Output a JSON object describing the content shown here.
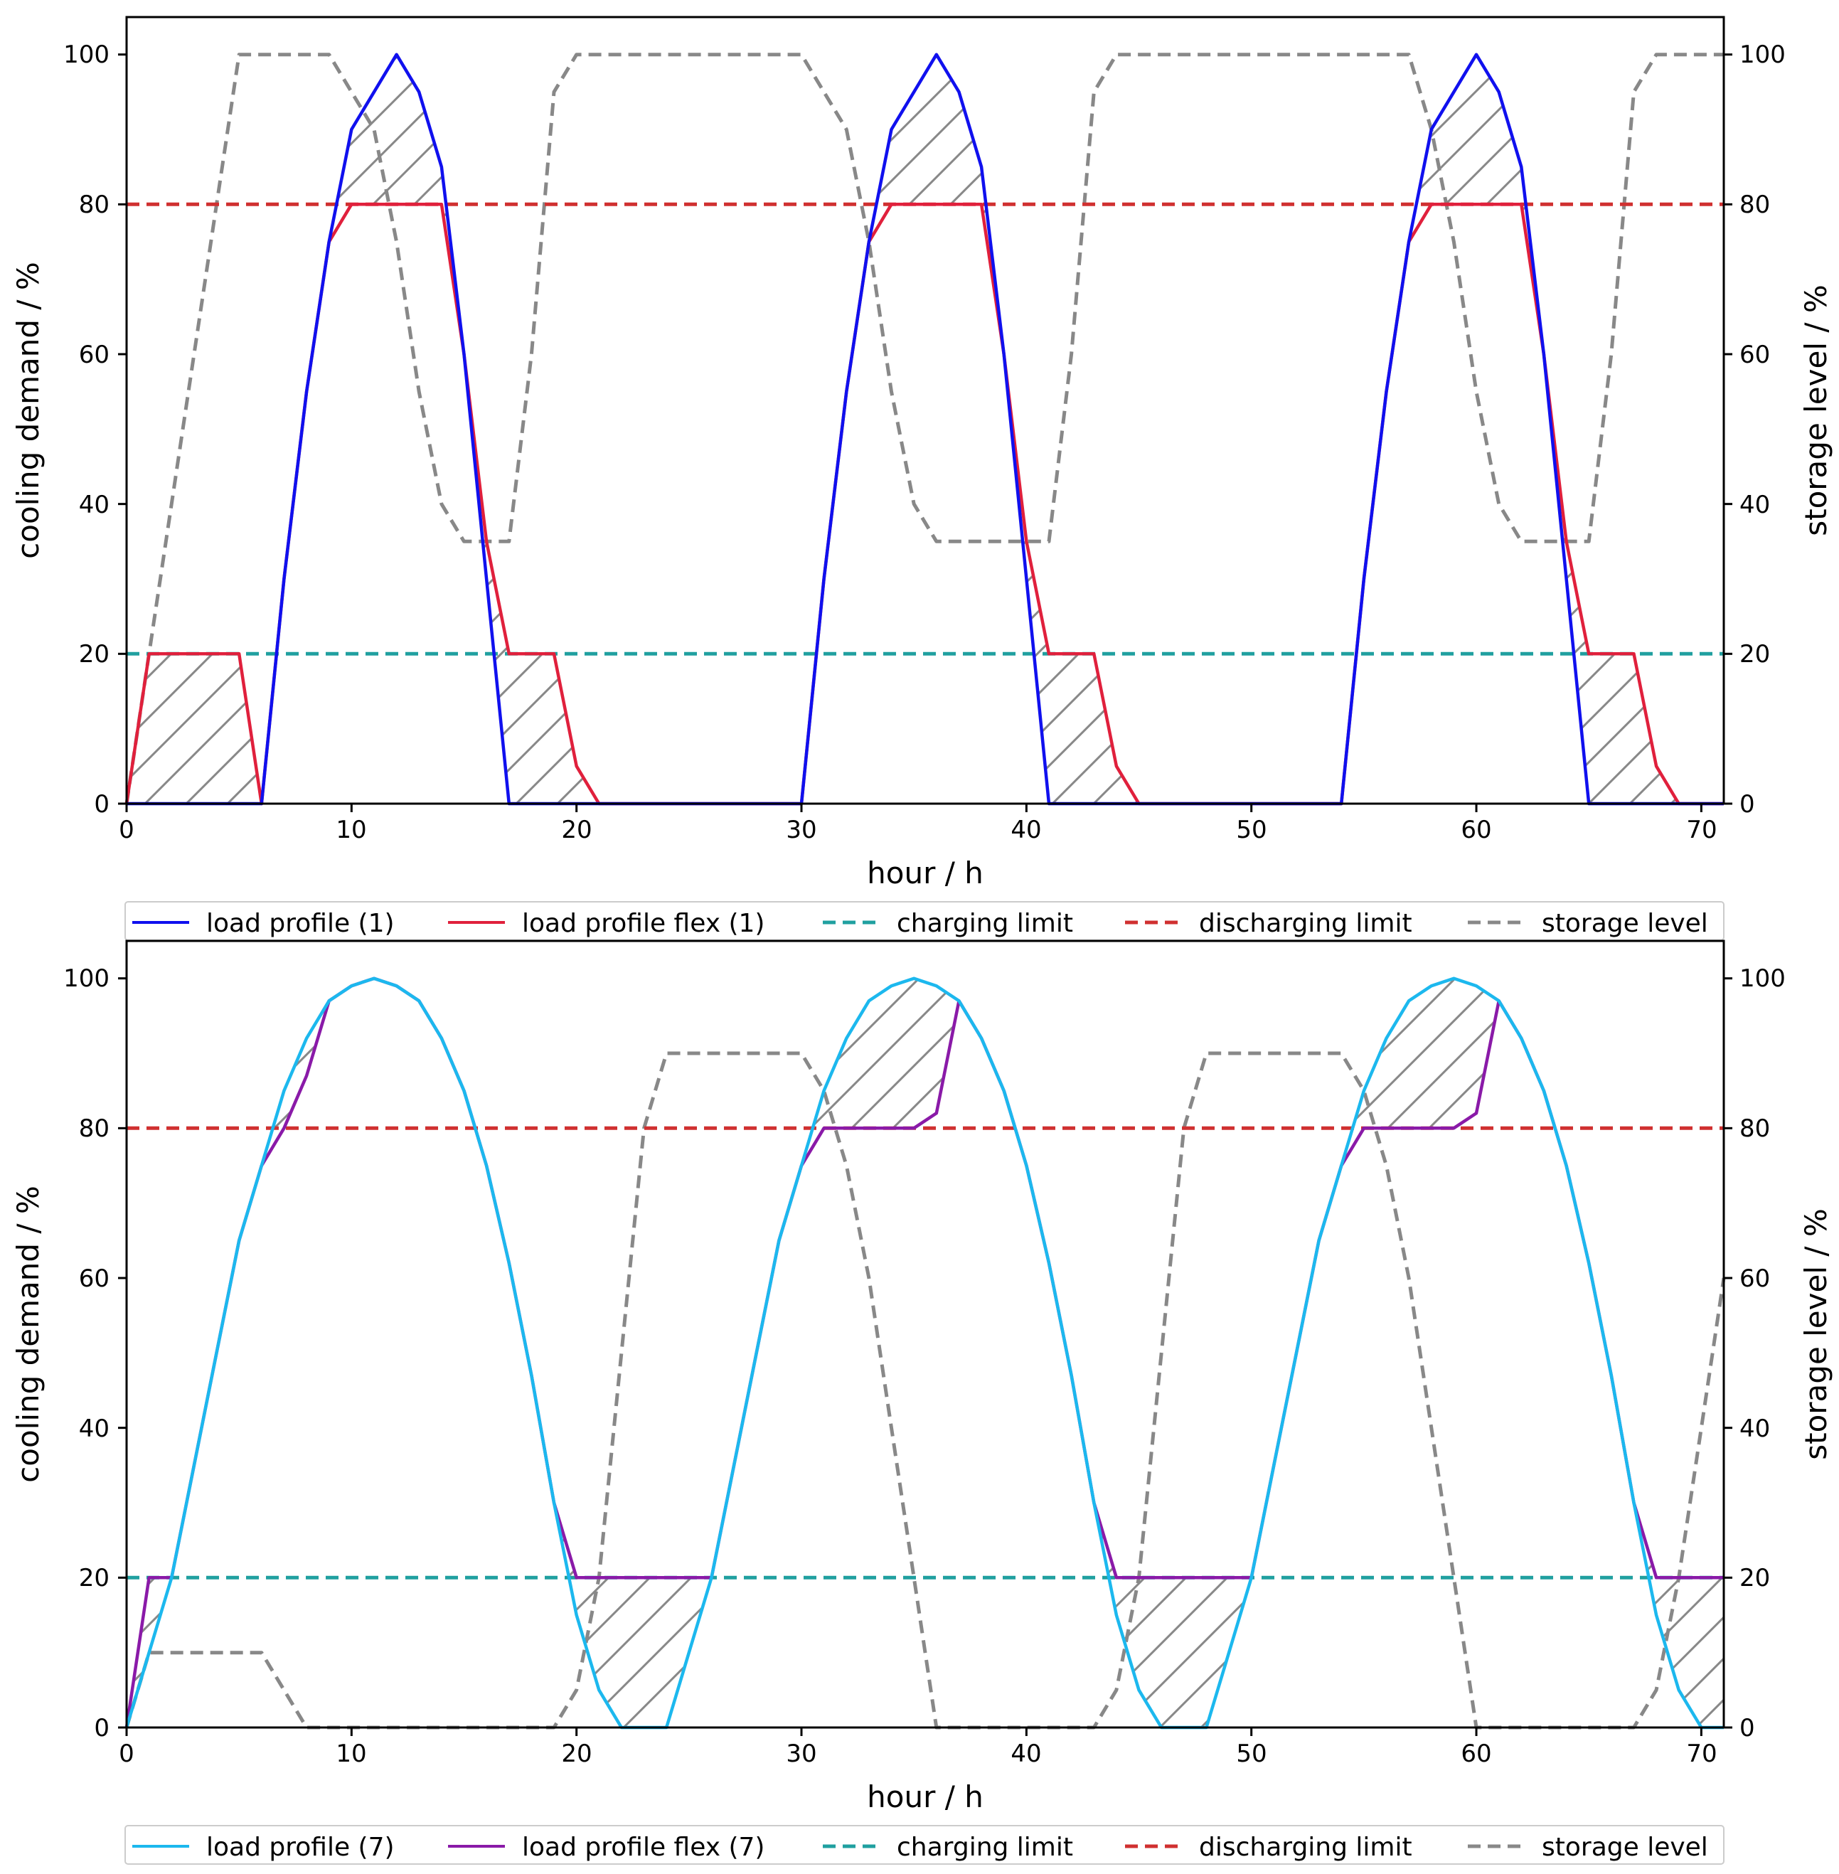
{
  "chart_data": [
    {
      "type": "line",
      "xlabel": "hour / h",
      "ylabel_left": "cooling demand / %",
      "ylabel_right": "storage level / %",
      "xlim": [
        0,
        71
      ],
      "ylim": [
        0,
        105
      ],
      "ylim_right": [
        0,
        105
      ],
      "xticks": [
        "0",
        "10",
        "20",
        "30",
        "40",
        "50",
        "60",
        "70"
      ],
      "yticks": [
        "0",
        "20",
        "40",
        "60",
        "80",
        "100"
      ],
      "legend_position": "below",
      "hatched_regions": "between load profile and load profile flex",
      "series": [
        {
          "name": "load profile (1)",
          "axis": "left",
          "style": "solid",
          "color": "#1010ee",
          "x": [
            0,
            1,
            2,
            3,
            4,
            5,
            6,
            7,
            8,
            9,
            10,
            11,
            12,
            13,
            14,
            15,
            16,
            17,
            18,
            19,
            20,
            21,
            22,
            23,
            24,
            25,
            26,
            27,
            28,
            29,
            30,
            31,
            32,
            33,
            34,
            35,
            36,
            37,
            38,
            39,
            40,
            41,
            42,
            43,
            44,
            45,
            46,
            47,
            48,
            49,
            50,
            51,
            52,
            53,
            54,
            55,
            56,
            57,
            58,
            59,
            60,
            61,
            62,
            63,
            64,
            65,
            66,
            67,
            68,
            69,
            70,
            71
          ],
          "values": [
            0,
            0,
            0,
            0,
            0,
            0,
            0,
            30,
            55,
            75,
            90,
            95,
            100,
            95,
            85,
            60,
            30,
            0,
            0,
            0,
            0,
            0,
            0,
            0,
            0,
            0,
            0,
            0,
            0,
            0,
            0,
            30,
            55,
            75,
            90,
            95,
            100,
            95,
            85,
            60,
            30,
            0,
            0,
            0,
            0,
            0,
            0,
            0,
            0,
            0,
            0,
            0,
            0,
            0,
            0,
            30,
            55,
            75,
            90,
            95,
            100,
            95,
            85,
            60,
            30,
            0,
            0,
            0,
            0,
            0,
            0,
            0
          ]
        },
        {
          "name": "load profile flex (1)",
          "axis": "left",
          "style": "solid",
          "color": "#e0203c",
          "x": [
            0,
            1,
            2,
            3,
            4,
            5,
            6,
            7,
            8,
            9,
            10,
            11,
            12,
            13,
            14,
            15,
            16,
            17,
            18,
            19,
            20,
            21,
            22,
            23,
            24,
            25,
            26,
            27,
            28,
            29,
            30,
            31,
            32,
            33,
            34,
            35,
            36,
            37,
            38,
            39,
            40,
            41,
            42,
            43,
            44,
            45,
            46,
            47,
            48,
            49,
            50,
            51,
            52,
            53,
            54,
            55,
            56,
            57,
            58,
            59,
            60,
            61,
            62,
            63,
            64,
            65,
            66,
            67,
            68,
            69,
            70,
            71
          ],
          "values": [
            0,
            20,
            20,
            20,
            20,
            20,
            0,
            30,
            55,
            75,
            80,
            80,
            80,
            80,
            80,
            60,
            35,
            20,
            20,
            20,
            5,
            0,
            0,
            0,
            0,
            0,
            0,
            0,
            0,
            0,
            0,
            30,
            55,
            75,
            80,
            80,
            80,
            80,
            80,
            60,
            35,
            20,
            20,
            20,
            5,
            0,
            0,
            0,
            0,
            0,
            0,
            0,
            0,
            0,
            0,
            30,
            55,
            75,
            80,
            80,
            80,
            80,
            80,
            60,
            35,
            20,
            20,
            20,
            5,
            0,
            0,
            0
          ]
        },
        {
          "name": "charging limit",
          "axis": "left",
          "style": "dashed",
          "color": "#20a0a0",
          "x": [
            0,
            71
          ],
          "values": [
            20,
            20
          ]
        },
        {
          "name": "discharging limit",
          "axis": "left",
          "style": "dashed",
          "color": "#d03030",
          "x": [
            0,
            71
          ],
          "values": [
            80,
            80
          ]
        },
        {
          "name": "storage level",
          "axis": "right",
          "style": "dashed",
          "color": "#888888",
          "x": [
            0,
            1,
            5,
            9,
            10,
            11,
            12,
            13,
            14,
            15,
            17,
            18,
            19,
            20,
            29,
            30,
            31,
            32,
            33,
            34,
            35,
            36,
            37,
            38,
            39,
            40,
            41,
            42,
            43,
            44,
            53,
            54,
            55,
            56,
            57,
            58,
            59,
            60,
            61,
            62,
            63,
            64,
            65,
            66,
            67,
            68,
            71
          ],
          "values": [
            0,
            20,
            100,
            100,
            95,
            90,
            75,
            55,
            40,
            35,
            35,
            60,
            95,
            100,
            100,
            100,
            95,
            90,
            75,
            55,
            40,
            35,
            35,
            35,
            35,
            35,
            35,
            60,
            95,
            100,
            100,
            100,
            100,
            100,
            100,
            90,
            75,
            55,
            40,
            35,
            35,
            35,
            35,
            60,
            95,
            100,
            100
          ]
        }
      ]
    },
    {
      "type": "line",
      "xlabel": "hour / h",
      "ylabel_left": "cooling demand / %",
      "ylabel_right": "storage level / %",
      "xlim": [
        0,
        71
      ],
      "ylim": [
        0,
        105
      ],
      "ylim_right": [
        0,
        105
      ],
      "xticks": [
        "0",
        "10",
        "20",
        "30",
        "40",
        "50",
        "60",
        "70"
      ],
      "yticks": [
        "0",
        "20",
        "40",
        "60",
        "80",
        "100"
      ],
      "legend_position": "below",
      "hatched_regions": "between load profile and load profile flex",
      "series": [
        {
          "name": "load profile (7)",
          "axis": "left",
          "style": "solid",
          "color": "#1cb8ee",
          "x": [
            0,
            1,
            2,
            3,
            4,
            5,
            6,
            7,
            8,
            9,
            10,
            11,
            12,
            13,
            14,
            15,
            16,
            17,
            18,
            19,
            20,
            21,
            22,
            23,
            24,
            25,
            26,
            27,
            28,
            29,
            30,
            31,
            32,
            33,
            34,
            35,
            36,
            37,
            38,
            39,
            40,
            41,
            42,
            43,
            44,
            45,
            46,
            47,
            48,
            49,
            50,
            51,
            52,
            53,
            54,
            55,
            56,
            57,
            58,
            59,
            60,
            61,
            62,
            63,
            64,
            65,
            66,
            67,
            68,
            69,
            70,
            71
          ],
          "values": [
            0,
            10,
            20,
            35,
            50,
            65,
            75,
            85,
            92,
            97,
            99,
            100,
            99,
            97,
            92,
            85,
            75,
            62,
            47,
            30,
            15,
            5,
            0,
            0,
            0,
            10,
            20,
            35,
            50,
            65,
            75,
            85,
            92,
            97,
            99,
            100,
            99,
            97,
            92,
            85,
            75,
            62,
            47,
            30,
            15,
            5,
            0,
            0,
            0,
            10,
            20,
            35,
            50,
            65,
            75,
            85,
            92,
            97,
            99,
            100,
            99,
            97,
            92,
            85,
            75,
            62,
            47,
            30,
            15,
            5,
            0,
            0
          ]
        },
        {
          "name": "load profile flex (7)",
          "axis": "left",
          "style": "solid",
          "color": "#8a1aa8",
          "x": [
            0,
            1,
            2,
            3,
            4,
            5,
            6,
            7,
            8,
            9,
            10,
            11,
            12,
            13,
            14,
            15,
            16,
            17,
            18,
            19,
            20,
            21,
            22,
            23,
            24,
            25,
            26,
            27,
            28,
            29,
            30,
            31,
            32,
            33,
            34,
            35,
            36,
            37,
            38,
            39,
            40,
            41,
            42,
            43,
            44,
            45,
            46,
            47,
            48,
            49,
            50,
            51,
            52,
            53,
            54,
            55,
            56,
            57,
            58,
            59,
            60,
            61,
            62,
            63,
            64,
            65,
            66,
            67,
            68,
            69,
            70,
            71
          ],
          "values": [
            0,
            20,
            20,
            35,
            50,
            65,
            75,
            80,
            87,
            97,
            99,
            100,
            99,
            97,
            92,
            85,
            75,
            62,
            47,
            30,
            20,
            20,
            20,
            20,
            20,
            20,
            20,
            35,
            50,
            65,
            75,
            80,
            80,
            80,
            80,
            80,
            82,
            97,
            92,
            85,
            75,
            62,
            47,
            30,
            20,
            20,
            20,
            20,
            20,
            20,
            20,
            35,
            50,
            65,
            75,
            80,
            80,
            80,
            80,
            80,
            82,
            97,
            92,
            85,
            75,
            62,
            47,
            30,
            20,
            20,
            20,
            20
          ]
        },
        {
          "name": "charging limit",
          "axis": "left",
          "style": "dashed",
          "color": "#20a0a0",
          "x": [
            0,
            71
          ],
          "values": [
            20,
            20
          ]
        },
        {
          "name": "discharging limit",
          "axis": "left",
          "style": "dashed",
          "color": "#d03030",
          "x": [
            0,
            71
          ],
          "values": [
            80,
            80
          ]
        },
        {
          "name": "storage level",
          "axis": "right",
          "style": "dashed",
          "color": "#888888",
          "x": [
            0,
            1,
            6,
            7,
            8,
            9,
            18,
            19,
            20,
            21,
            22,
            23,
            24,
            30,
            31,
            32,
            33,
            34,
            35,
            36,
            37,
            42,
            43,
            44,
            45,
            46,
            47,
            48,
            54,
            55,
            56,
            57,
            58,
            59,
            60,
            61,
            66,
            67,
            68,
            69,
            70,
            71
          ],
          "values": [
            0,
            10,
            10,
            5,
            0,
            0,
            0,
            0,
            5,
            20,
            50,
            80,
            90,
            90,
            85,
            75,
            60,
            40,
            20,
            0,
            0,
            0,
            0,
            5,
            20,
            50,
            80,
            90,
            90,
            85,
            75,
            60,
            40,
            20,
            0,
            0,
            0,
            0,
            5,
            20,
            40,
            60
          ]
        }
      ]
    }
  ]
}
